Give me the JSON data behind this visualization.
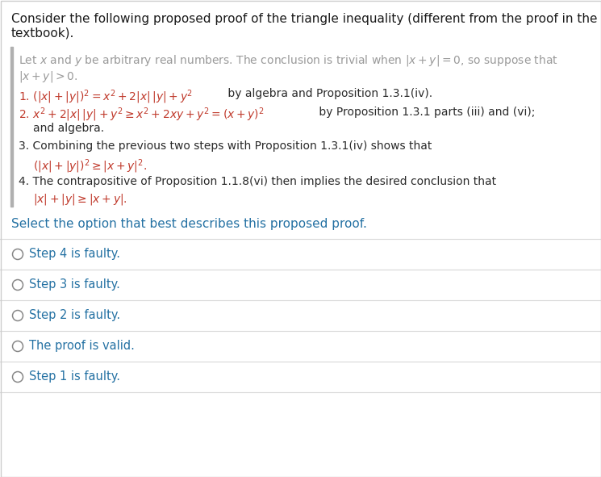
{
  "bg_color": "#ffffff",
  "border_color": "#cccccc",
  "title_line1": "Consider the following proposed proof of the triangle inequality (different from the proof in the",
  "title_line2": "textbook).",
  "title_color": "#1a1a1a",
  "title_fontsize": 11.0,
  "quote_bar_color": "#b0b0b0",
  "gray": "#9a9a9a",
  "dark": "#2a2a2a",
  "red": "#c0392b",
  "blue": "#2471a3",
  "select_text": "Select the option that best describes this proposed proof.",
  "select_fontsize": 11.0,
  "options": [
    "Step 4 is faulty.",
    "Step 3 is faulty.",
    "Step 2 is faulty.",
    "The proof is valid.",
    "Step 1 is faulty."
  ],
  "option_fontsize": 10.5,
  "option_color": "#3a3a3a",
  "divider_color": "#d8d8d8",
  "radio_color": "#888888"
}
